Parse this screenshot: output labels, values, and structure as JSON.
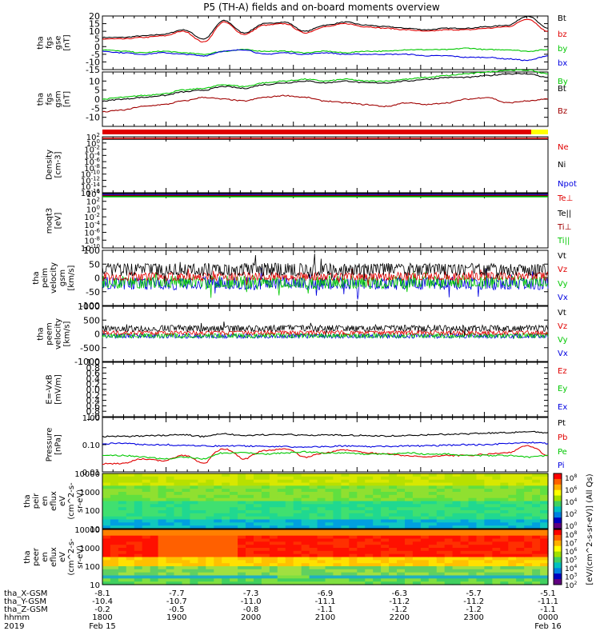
{
  "title": "P5 (TH-A) fields and on-board moments overview",
  "colors": {
    "black": "#000000",
    "red": "#e00000",
    "green": "#00c800",
    "blue": "#0000e0",
    "darkred": "#a00000",
    "yellow": "#ffff00"
  },
  "chart_data": [
    {
      "type": "line",
      "id": "fgs_gse",
      "ylabel": [
        "tha",
        "fgs",
        "gse",
        "[nT]"
      ],
      "ylim": [
        -15,
        20
      ],
      "ticks": [
        20,
        15,
        10,
        5,
        0,
        -5,
        -10,
        -15
      ],
      "series": [
        {
          "name": "Bt",
          "color": "#000000",
          "y": [
            6,
            6,
            7,
            8,
            11,
            5,
            17,
            9,
            15,
            16,
            10,
            14,
            16,
            14,
            13,
            12,
            11,
            12,
            12,
            13,
            14,
            20,
            12
          ]
        },
        {
          "name": "bz",
          "color": "#e00000",
          "y": [
            5,
            5,
            6,
            7,
            10,
            3,
            16,
            8,
            14,
            15,
            9,
            13,
            15,
            13,
            12,
            11,
            10,
            11,
            11,
            12,
            13,
            18,
            10
          ]
        },
        {
          "name": "by",
          "color": "#00c800",
          "y": [
            -2,
            -3,
            -4,
            -3,
            -4,
            -5,
            -3,
            -2,
            -3,
            -3,
            -4,
            -3,
            -4,
            -3,
            -3,
            -2,
            -2,
            -2,
            -1,
            -2,
            -2,
            -3,
            -2
          ]
        },
        {
          "name": "bx",
          "color": "#0000e0",
          "y": [
            -3,
            -4,
            -5,
            -4,
            -5,
            -6,
            -3,
            -2,
            -5,
            -4,
            -5,
            -4,
            -5,
            -5,
            -5,
            -5,
            -6,
            -6,
            -7,
            -7,
            -8,
            -9,
            -6
          ]
        }
      ]
    },
    {
      "type": "line",
      "id": "fgs_gsm",
      "ylabel": [
        "tha",
        "fgs",
        "gsm",
        "[nT]"
      ],
      "ylim": [
        -15,
        15
      ],
      "ticks": [
        10,
        5,
        0,
        -5,
        -10
      ],
      "series": [
        {
          "name": "By",
          "color": "#00c800",
          "y": [
            0,
            1,
            2,
            3,
            5,
            6,
            8,
            7,
            9,
            10,
            11,
            10,
            11,
            10,
            10,
            11,
            12,
            13,
            14,
            15,
            16,
            16,
            14
          ]
        },
        {
          "name": "Bt",
          "color": "#000000",
          "y": [
            -1,
            0,
            1,
            2,
            4,
            5,
            7,
            6,
            8,
            9,
            10,
            9,
            10,
            9,
            9,
            10,
            11,
            12,
            12,
            13,
            14,
            14,
            12
          ]
        },
        {
          "name": "Bz",
          "color": "#a00000",
          "y": [
            -7,
            -6,
            -4,
            -3,
            -1,
            1,
            0,
            -1,
            1,
            2,
            1,
            -1,
            -2,
            -3,
            -4,
            -2,
            -3,
            -2,
            0,
            1,
            -2,
            -1,
            0
          ]
        }
      ]
    },
    {
      "type": "line",
      "id": "density",
      "scale": "log",
      "ylabel": [
        "Density",
        "[cm-3]"
      ],
      "ylim": [
        1e-16,
        100
      ],
      "tick_labels": [
        "10^2",
        "10^0",
        "10^-2",
        "10^-4",
        "10^-6",
        "10^-8",
        "10^-10",
        "10^-12",
        "10^-14",
        "10^-16"
      ],
      "legend": [
        "Ne",
        "Ni",
        "Npot"
      ],
      "legend_colors": [
        "#e00000",
        "#000000",
        "#0000e0"
      ]
    },
    {
      "type": "line",
      "id": "temperature",
      "scale": "log",
      "ylabel": [
        "moqt3",
        "[eV]"
      ],
      "ylim": [
        1e-10,
        10000
      ],
      "tick_labels": [
        "10^4",
        "10^2",
        "10^0",
        "10^-2",
        "10^-4",
        "10^-6",
        "10^-8",
        "10^-10"
      ],
      "legend": [
        "Te⊥",
        "Te||",
        "Ti⊥",
        "Ti||"
      ],
      "legend_colors": [
        "#e00000",
        "#000000",
        "#a00000",
        "#00c800"
      ]
    },
    {
      "type": "line",
      "id": "peim_velocity",
      "ylabel": [
        "tha",
        "peim",
        "velocity",
        "gsm",
        "[km/s]"
      ],
      "ylim": [
        -100,
        100
      ],
      "ticks": [
        100,
        50,
        0,
        -50,
        -100
      ],
      "legend": [
        "Vt",
        "Vz",
        "Vy",
        "Vx"
      ],
      "legend_colors": [
        "#000000",
        "#e00000",
        "#00c800",
        "#0000e0"
      ]
    },
    {
      "type": "line",
      "id": "peem_velocity",
      "ylabel": [
        "tha",
        "peem",
        "velocity",
        "[km/s]"
      ],
      "ylim": [
        -1000,
        1000
      ],
      "ticks": [
        1000,
        500,
        0,
        -500,
        -1000
      ],
      "legend": [
        "Vt",
        "Vz",
        "Vy",
        "Vx"
      ],
      "legend_colors": [
        "#000000",
        "#e00000",
        "#00c800",
        "#0000e0"
      ]
    },
    {
      "type": "line",
      "id": "efield",
      "ylabel": [
        "E=-VxB",
        "[mV/m]"
      ],
      "ylim": [
        -1,
        1
      ],
      "ticks": [
        1.0,
        0.8,
        0.6,
        0.4,
        0.2,
        0.0,
        -0.2,
        -0.4,
        -0.6,
        -0.8,
        -1.0
      ],
      "tick_labels": [
        "1.0",
        "0.8",
        "0.6",
        "0.4",
        "0.2",
        "0.0",
        "0.2",
        "0.4",
        "0.6",
        "0.8",
        "1.0"
      ],
      "legend": [
        "Ez",
        "Ey",
        "Ex"
      ],
      "legend_colors": [
        "#e00000",
        "#00c800",
        "#0000e0"
      ]
    },
    {
      "type": "line",
      "id": "pressure",
      "scale": "log",
      "ylabel": [
        "Pressure",
        "[nPa]"
      ],
      "ylim": [
        0.01,
        1
      ],
      "tick_labels": [
        "1.00",
        "0.10",
        "0.01"
      ],
      "series": [
        {
          "name": "Pt",
          "color": "#000000",
          "y": [
            0.2,
            0.2,
            0.21,
            0.22,
            0.23,
            0.2,
            0.25,
            0.22,
            0.23,
            0.24,
            0.22,
            0.23,
            0.22,
            0.22,
            0.21,
            0.22,
            0.23,
            0.24,
            0.25,
            0.27,
            0.28,
            0.3,
            0.28
          ]
        },
        {
          "name": "Pb",
          "color": "#e00000",
          "y": [
            0.02,
            0.02,
            0.03,
            0.025,
            0.04,
            0.02,
            0.07,
            0.03,
            0.06,
            0.07,
            0.035,
            0.05,
            0.065,
            0.05,
            0.045,
            0.04,
            0.035,
            0.04,
            0.04,
            0.045,
            0.05,
            0.09,
            0.04
          ]
        },
        {
          "name": "Pe",
          "color": "#00c800",
          "y": [
            0.04,
            0.04,
            0.035,
            0.03,
            0.035,
            0.03,
            0.05,
            0.05,
            0.045,
            0.05,
            0.055,
            0.05,
            0.05,
            0.045,
            0.045,
            0.05,
            0.045,
            0.045,
            0.04,
            0.04,
            0.04,
            0.035,
            0.04
          ]
        },
        {
          "name": "Pi",
          "color": "#0000e0",
          "y": [
            0.11,
            0.11,
            0.1,
            0.1,
            0.095,
            0.09,
            0.09,
            0.09,
            0.085,
            0.085,
            0.08,
            0.085,
            0.09,
            0.085,
            0.085,
            0.09,
            0.09,
            0.095,
            0.1,
            0.1,
            0.11,
            0.12,
            0.11
          ]
        }
      ]
    },
    {
      "type": "heatmap",
      "id": "peir_eflux",
      "ylabel": [
        "tha",
        "peir",
        "en",
        "eflux",
        "eV",
        "(cm^2-s-",
        "sr-eV)"
      ],
      "ylim": [
        5,
        30000
      ],
      "tick_labels": [
        "10000",
        "1000",
        "100",
        "10"
      ]
    },
    {
      "type": "heatmap",
      "id": "peer_eflux",
      "ylabel": [
        "tha",
        "peer",
        "en",
        "eflux",
        "eV",
        "(cm^2-s-",
        "sr-eV)"
      ],
      "ylim": [
        5,
        30000
      ],
      "tick_labels": [
        "10000",
        "1000",
        "100",
        "10"
      ]
    }
  ],
  "colorbar": {
    "label": "[eV/(cm^2-s-sr-eV)] (All Qs)",
    "upper_ticks": [
      "10^8",
      "10^6",
      "10^4",
      "10^2",
      "10^0"
    ],
    "lower_ticks": [
      "10^8",
      "10^7",
      "10^6",
      "10^5",
      "10^4",
      "10^3",
      "10^2"
    ]
  },
  "xaxis": {
    "rows": [
      {
        "label": "tha_X-GSM",
        "values": [
          "-8.1",
          "-7.7",
          "-7.3",
          "-6.9",
          "-6.3",
          "-5.7",
          "-5.1"
        ]
      },
      {
        "label": "tha_Y-GSM",
        "values": [
          "-10.4",
          "-10.7",
          "-11.0",
          "-11.1",
          "-11.2",
          "-11.2",
          "-11.1"
        ]
      },
      {
        "label": "tha_Z-GSM",
        "values": [
          "-0.2",
          "-0.5",
          "-0.8",
          "-1.1",
          "-1.2",
          "-1.2",
          "-1.1"
        ]
      },
      {
        "label": "hhmm",
        "values": [
          "1800",
          "1900",
          "2000",
          "2100",
          "2200",
          "2300",
          "0000"
        ]
      }
    ],
    "year": "2019",
    "date_start": "Feb 15",
    "date_end": "Feb 16"
  }
}
